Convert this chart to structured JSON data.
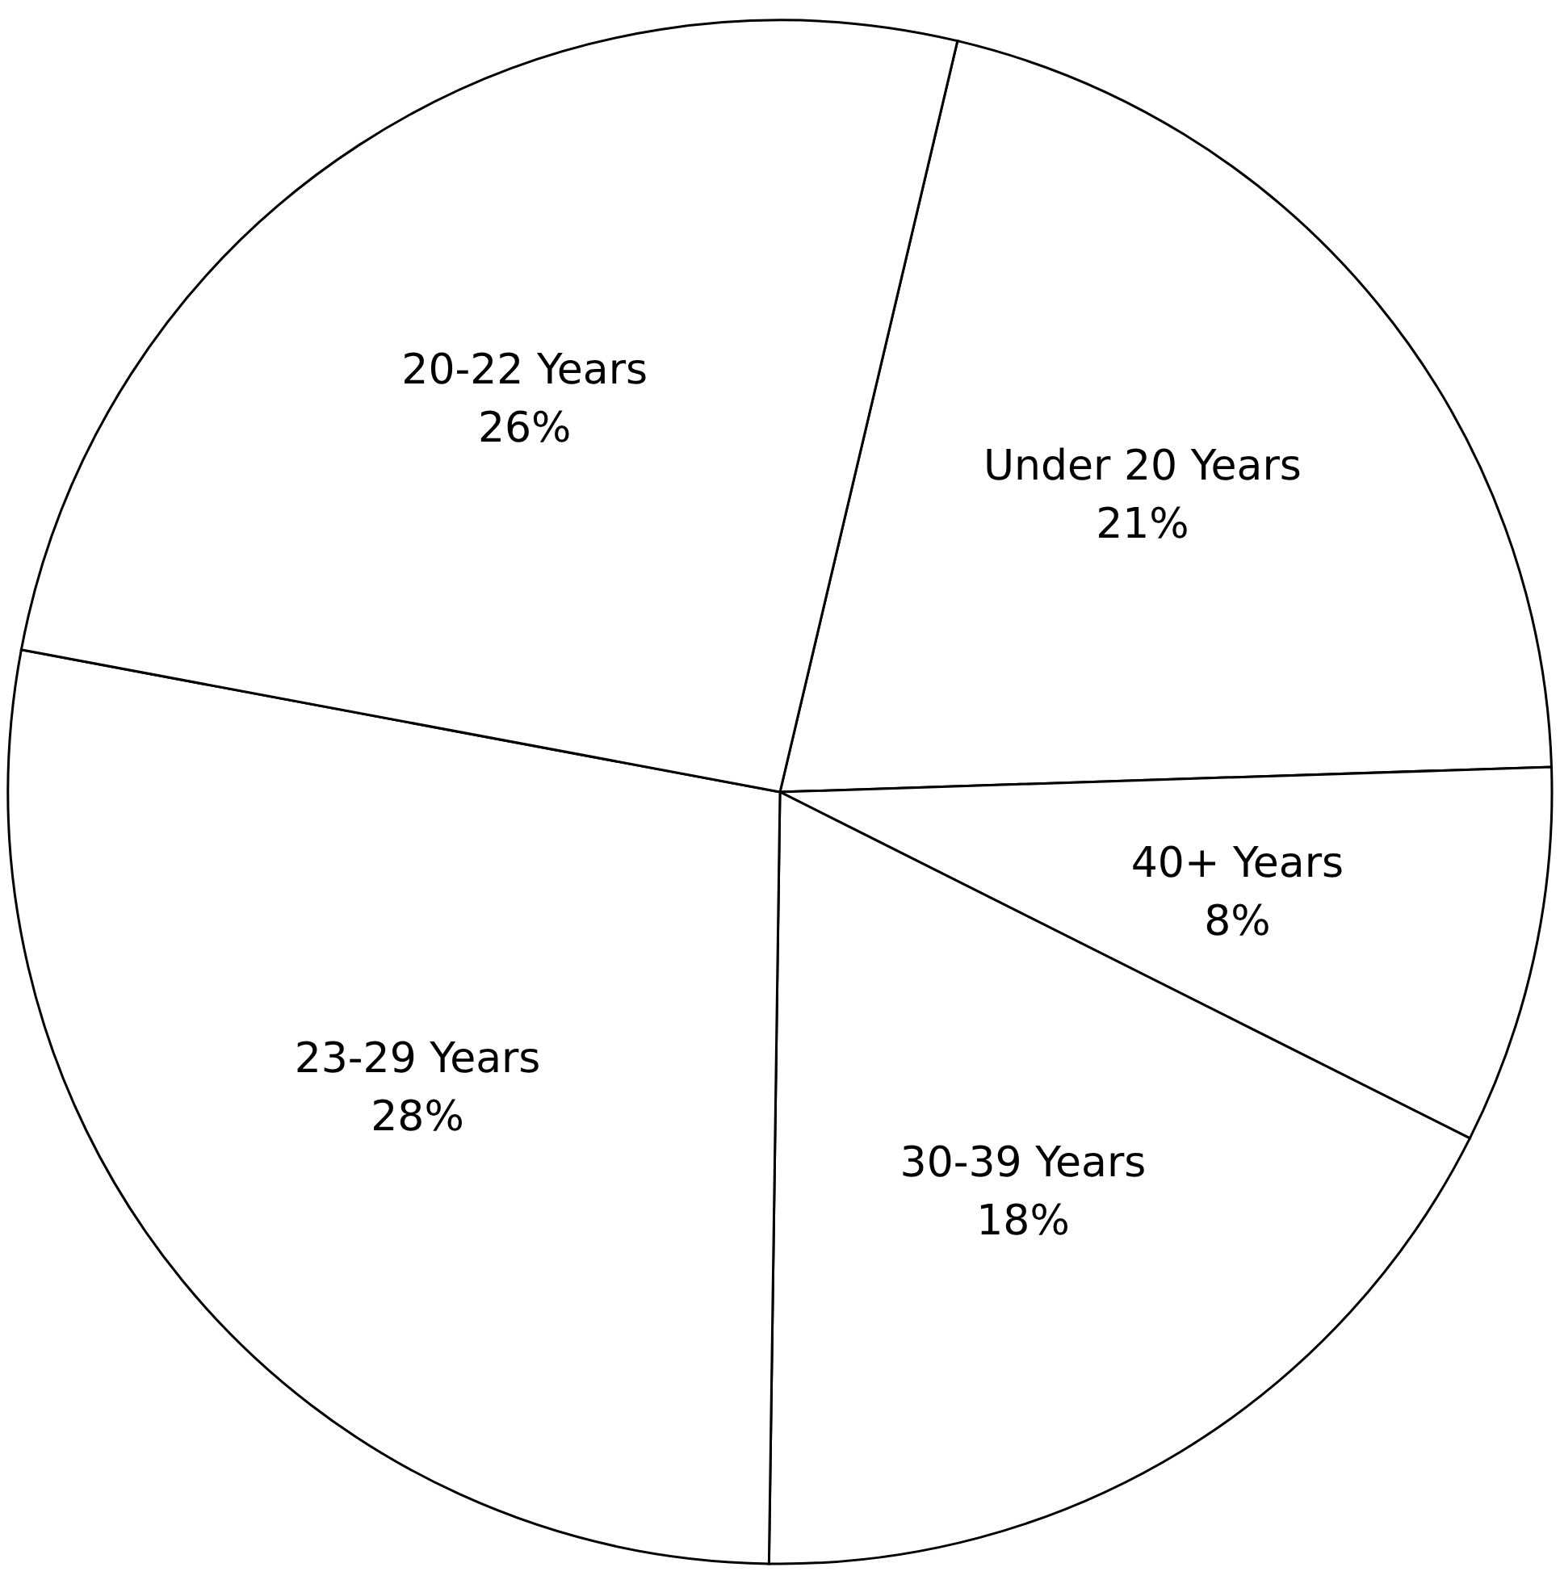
{
  "chart_data": {
    "type": "pie",
    "categories": [
      "Under 20 Years",
      "40+ Years",
      "30-39 Years",
      "23-29 Years",
      "20-22 Years"
    ],
    "values": [
      21,
      8,
      18,
      28,
      26
    ],
    "colors": [
      "#ffffff",
      "#ffffff",
      "#ffffff",
      "#ffffff",
      "#ffffff"
    ],
    "value_labels": [
      "21%",
      "8%",
      "18%",
      "28%",
      "26%"
    ],
    "legend": false
  }
}
